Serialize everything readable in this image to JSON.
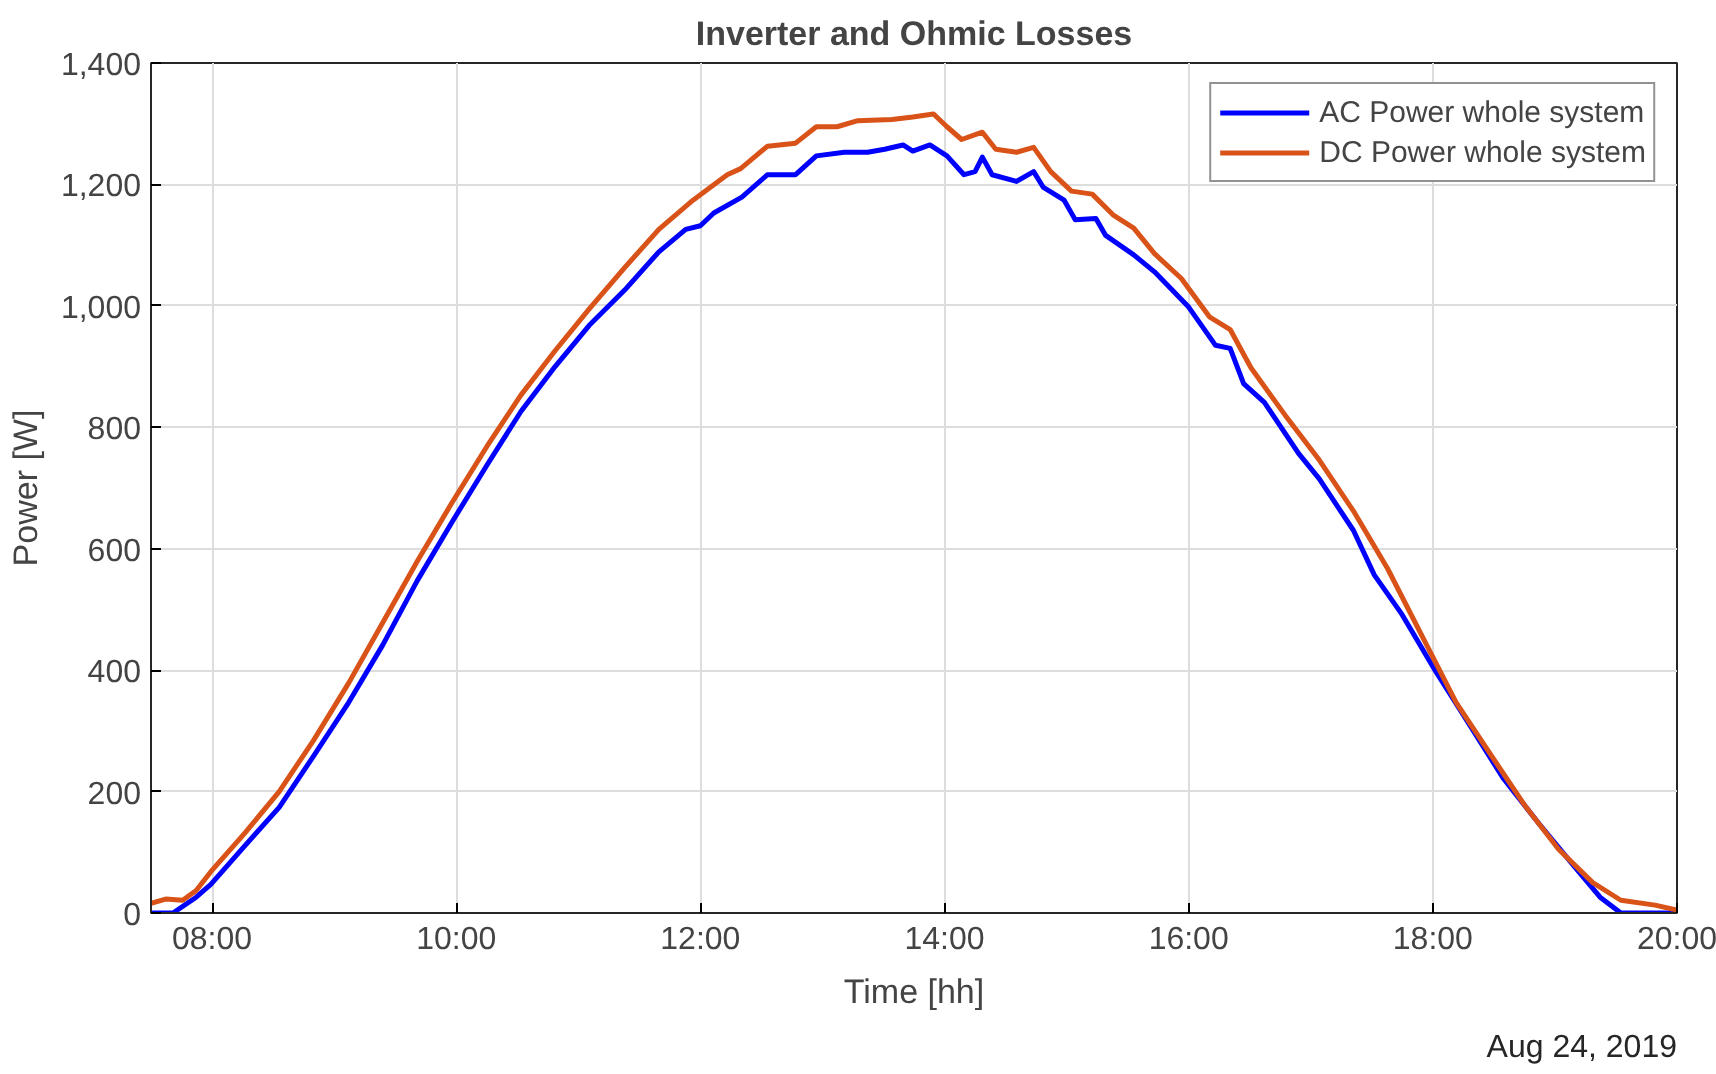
{
  "chart_data": {
    "type": "line",
    "title": "Inverter and Ohmic Losses",
    "xlabel": "Time [hh]",
    "ylabel": "Power [W]",
    "annotations": [
      "Aug 24, 2019"
    ],
    "xlim": [
      7.5,
      20
    ],
    "ylim": [
      0,
      1400
    ],
    "xticks": [
      {
        "value": 8,
        "label": "08:00"
      },
      {
        "value": 10,
        "label": "10:00"
      },
      {
        "value": 12,
        "label": "12:00"
      },
      {
        "value": 14,
        "label": "14:00"
      },
      {
        "value": 16,
        "label": "16:00"
      },
      {
        "value": 18,
        "label": "18:00"
      },
      {
        "value": 20,
        "label": "20:00"
      }
    ],
    "yticks": [
      0,
      200,
      400,
      600,
      800,
      {
        "value": 1000,
        "label": "1,000"
      },
      {
        "value": 1200,
        "label": "1,200"
      },
      {
        "value": 1400,
        "label": "1,400"
      }
    ],
    "grid": true,
    "legend": "top right",
    "marker": "none",
    "line_style": "solid",
    "series": [
      {
        "name": "AC Power whole system",
        "color": "#0000ff",
        "x": [
          7.5,
          7.68,
          7.87,
          7.99,
          8.27,
          8.55,
          8.83,
          9.12,
          9.4,
          9.68,
          9.96,
          10.25,
          10.53,
          10.81,
          11.09,
          11.38,
          11.66,
          11.88,
          12.0,
          12.11,
          12.34,
          12.55,
          12.78,
          12.95,
          13.18,
          13.37,
          13.51,
          13.66,
          13.74,
          13.88,
          14.02,
          14.16,
          14.25,
          14.31,
          14.39,
          14.59,
          14.73,
          14.81,
          14.98,
          15.07,
          15.24,
          15.32,
          15.55,
          15.72,
          16.0,
          16.22,
          16.34,
          16.45,
          16.62,
          16.9,
          17.07,
          17.35,
          17.52,
          17.74,
          18.02,
          18.3,
          18.58,
          18.87,
          19.15,
          19.37,
          19.54,
          20.0
        ],
        "values": [
          0,
          0,
          26,
          47,
          111,
          174,
          258,
          347,
          442,
          547,
          642,
          737,
          826,
          900,
          968,
          1026,
          1089,
          1126,
          1132,
          1153,
          1179,
          1216,
          1216,
          1247,
          1253,
          1253,
          1258,
          1265,
          1255,
          1265,
          1247,
          1216,
          1221,
          1245,
          1216,
          1205,
          1221,
          1195,
          1174,
          1142,
          1144,
          1116,
          1084,
          1056,
          998,
          935,
          930,
          872,
          841,
          757,
          715,
          630,
          557,
          494,
          399,
          310,
          221,
          147,
          79,
          26,
          0,
          0
        ]
      },
      {
        "name": "DC Power whole system",
        "color": "#d95319",
        "x": [
          7.5,
          7.62,
          7.76,
          7.87,
          7.99,
          8.27,
          8.55,
          8.83,
          9.12,
          9.4,
          9.68,
          9.96,
          10.25,
          10.53,
          10.81,
          11.09,
          11.38,
          11.66,
          11.94,
          12.22,
          12.33,
          12.55,
          12.78,
          12.95,
          13.12,
          13.29,
          13.57,
          13.74,
          13.91,
          14.02,
          14.14,
          14.31,
          14.42,
          14.59,
          14.73,
          14.87,
          15.04,
          15.21,
          15.38,
          15.55,
          15.72,
          15.94,
          16.17,
          16.34,
          16.51,
          16.79,
          17.07,
          17.35,
          17.63,
          17.91,
          18.19,
          18.47,
          18.75,
          19.03,
          19.31,
          19.54,
          19.82,
          20.0
        ],
        "values": [
          16,
          23,
          21,
          37,
          68,
          132,
          200,
          284,
          379,
          479,
          579,
          674,
          768,
          853,
          926,
          995,
          1063,
          1126,
          1174,
          1216,
          1226,
          1263,
          1268,
          1295,
          1295,
          1305,
          1307,
          1311,
          1316,
          1295,
          1274,
          1286,
          1258,
          1253,
          1261,
          1221,
          1189,
          1184,
          1150,
          1128,
          1086,
          1045,
          982,
          961,
          898,
          820,
          746,
          662,
          567,
          457,
          347,
          262,
          178,
          105,
          50,
          21,
          13,
          5
        ]
      }
    ]
  }
}
